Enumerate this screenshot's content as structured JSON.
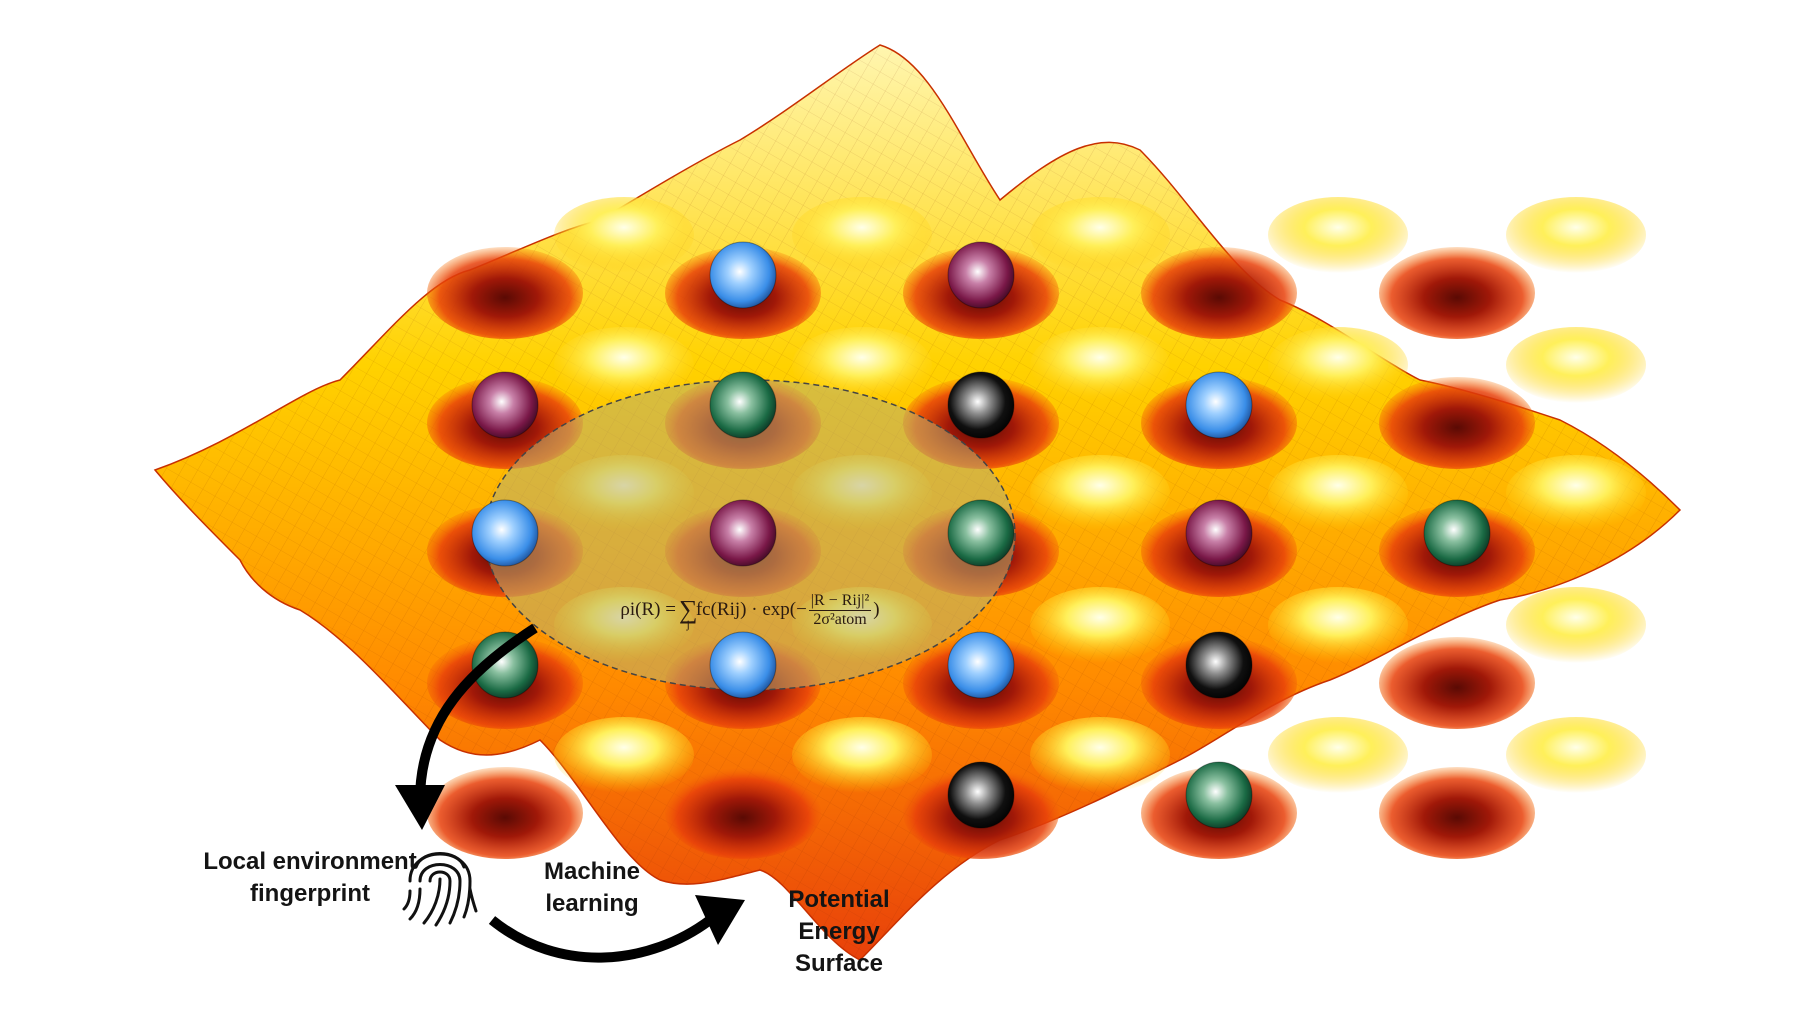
{
  "labels": {
    "local_environment": [
      "Local environment",
      "fingerprint"
    ],
    "machine_learning": [
      "Machine",
      "learning"
    ],
    "potential_energy_surface": [
      "Potential",
      "Energy",
      "Surface"
    ]
  },
  "formula": {
    "lhs": "ρi(R) =",
    "sum": "∑",
    "sum_index": "j",
    "term": "fc(Rij) · exp(−",
    "numerator": "|R − Rij|²",
    "denominator": "2σ²atom",
    "close": ")"
  },
  "colors": {
    "surface_peak": "#fff6b0",
    "surface_mid": "#ffb400",
    "surface_valley": "#e8400a",
    "surface_deep": "#a01808",
    "atom_blue": "#3a8ee8",
    "atom_purple": "#7a1848",
    "atom_green": "#1a6a44",
    "atom_black": "#101010",
    "cutoff_region": "#b8b070",
    "arrow": "#000000"
  },
  "atoms": [
    {
      "row": 0,
      "col": 0,
      "species": "blue"
    },
    {
      "row": 0,
      "col": 1,
      "species": "purple"
    },
    {
      "row": 1,
      "col": 0,
      "species": "purple"
    },
    {
      "row": 1,
      "col": 1,
      "species": "green"
    },
    {
      "row": 1,
      "col": 2,
      "species": "black"
    },
    {
      "row": 1,
      "col": 3,
      "species": "blue"
    },
    {
      "row": 2,
      "col": 0,
      "species": "blue"
    },
    {
      "row": 2,
      "col": 1,
      "species": "purple"
    },
    {
      "row": 2,
      "col": 2,
      "species": "green"
    },
    {
      "row": 2,
      "col": 3,
      "species": "purple"
    },
    {
      "row": 2,
      "col": 4,
      "species": "green"
    },
    {
      "row": 3,
      "col": 0,
      "species": "green"
    },
    {
      "row": 3,
      "col": 1,
      "species": "blue"
    },
    {
      "row": 3,
      "col": 2,
      "species": "blue"
    },
    {
      "row": 3,
      "col": 3,
      "species": "black"
    },
    {
      "row": 4,
      "col": 1,
      "species": "black"
    },
    {
      "row": 4,
      "col": 2,
      "species": "green"
    }
  ],
  "icons": {
    "fingerprint": "fingerprint-icon"
  }
}
